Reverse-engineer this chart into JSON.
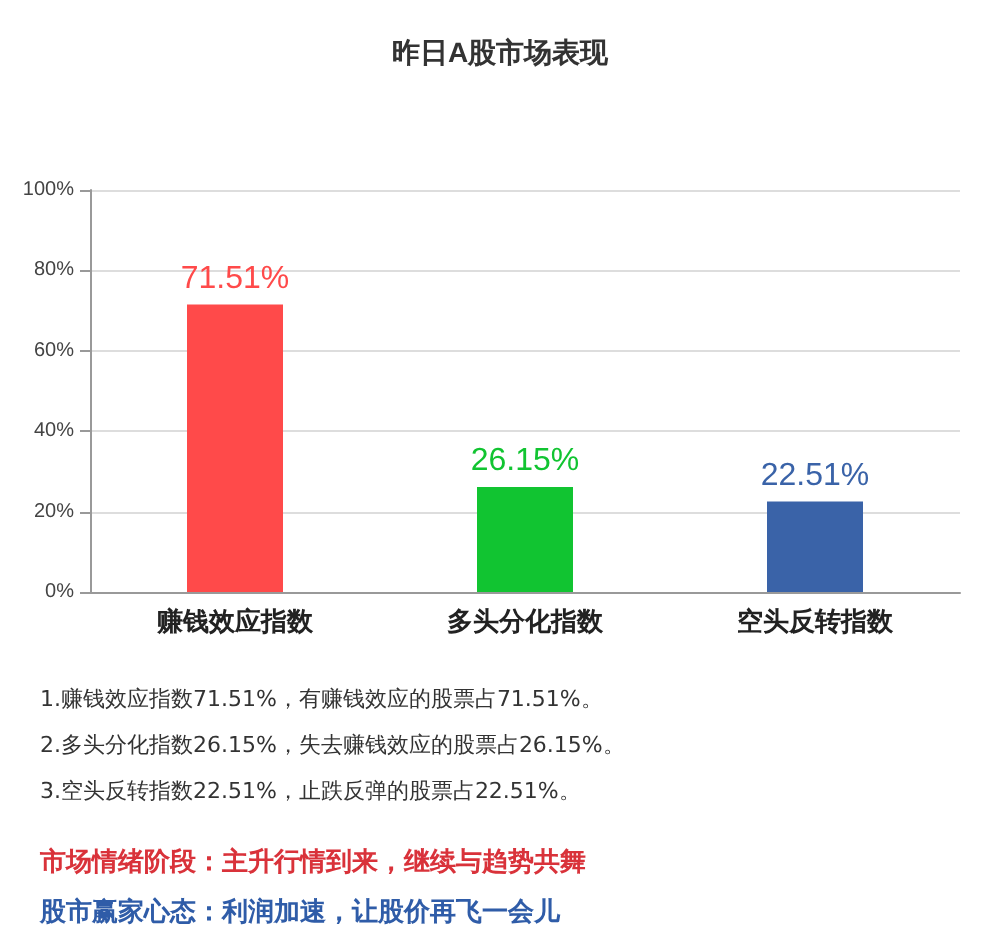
{
  "chart_data": {
    "type": "bar",
    "title": "昨日A股市场表现",
    "categories": [
      "赚钱效应指数",
      "多头分化指数",
      "空头反转指数"
    ],
    "values": [
      71.51,
      26.15,
      22.51
    ],
    "colors": [
      "#ff4a4a",
      "#11c431",
      "#3a63a8"
    ],
    "value_labels": [
      "71.51%",
      "26.15%",
      "22.51%"
    ],
    "ylim": [
      0,
      100
    ],
    "yticks": [
      {
        "value": 0,
        "label": "0%"
      },
      {
        "value": 20,
        "label": "20%"
      },
      {
        "value": 40,
        "label": "40%"
      },
      {
        "value": 60,
        "label": "60%"
      },
      {
        "value": 80,
        "label": "80%"
      },
      {
        "value": 100,
        "label": "100%"
      }
    ],
    "grid": "y",
    "annotations": [
      "1.赚钱效应指数71.51%，有赚钱效应的股票占71.51%。",
      "2.多头分化指数26.15%，失去赚钱效应的股票占26.15%。",
      "3.空头反转指数22.51%，止跌反弹的股票占22.51%。",
      "市场情绪阶段：主升行情到来，继续与趋势共舞",
      "股市赢家心态：利润加速，让股价再飞一会儿"
    ]
  }
}
